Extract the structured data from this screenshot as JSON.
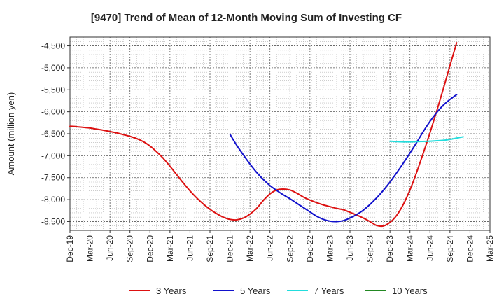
{
  "chart_data": {
    "type": "line",
    "title": "[9470]  Trend of Mean of 12-Month Moving Sum of Investing CF",
    "ylabel": "Amount (million yen)",
    "xlabel": "",
    "ylim": [
      -8700,
      -4300
    ],
    "yticks": [
      -4500,
      -5000,
      -5500,
      -6000,
      -6500,
      -7000,
      -7500,
      -8000,
      -8500
    ],
    "ytick_labels": [
      "-4,500",
      "-5,000",
      "-5,500",
      "-6,000",
      "-6,500",
      "-7,000",
      "-7,500",
      "-8,000",
      "-8,500"
    ],
    "x_range": [
      "2019-12",
      "2025-03"
    ],
    "xtick_labels": [
      "Dec-19",
      "Mar-20",
      "Jun-20",
      "Sep-20",
      "Dec-20",
      "Mar-21",
      "Jun-21",
      "Sep-21",
      "Dec-21",
      "Mar-22",
      "Jun-22",
      "Sep-22",
      "Dec-22",
      "Mar-23",
      "Jun-23",
      "Sep-23",
      "Dec-23",
      "Mar-24",
      "Jun-24",
      "Sep-24",
      "Dec-24",
      "Mar-25"
    ],
    "grid": true,
    "legend_position": "bottom",
    "series": [
      {
        "name": "3 Years",
        "color": "#dd1111",
        "points": [
          [
            "2019-12",
            -6330
          ],
          [
            "2020-01",
            -6340
          ],
          [
            "2020-02",
            -6355
          ],
          [
            "2020-03",
            -6370
          ],
          [
            "2020-04",
            -6395
          ],
          [
            "2020-05",
            -6420
          ],
          [
            "2020-06",
            -6450
          ],
          [
            "2020-07",
            -6480
          ],
          [
            "2020-08",
            -6520
          ],
          [
            "2020-09",
            -6560
          ],
          [
            "2020-10",
            -6610
          ],
          [
            "2020-11",
            -6680
          ],
          [
            "2020-12",
            -6780
          ],
          [
            "2021-01",
            -6910
          ],
          [
            "2021-02",
            -7060
          ],
          [
            "2021-03",
            -7240
          ],
          [
            "2021-04",
            -7430
          ],
          [
            "2021-05",
            -7620
          ],
          [
            "2021-06",
            -7800
          ],
          [
            "2021-07",
            -7960
          ],
          [
            "2021-08",
            -8100
          ],
          [
            "2021-09",
            -8220
          ],
          [
            "2021-10",
            -8320
          ],
          [
            "2021-11",
            -8400
          ],
          [
            "2021-12",
            -8450
          ],
          [
            "2022-01",
            -8460
          ],
          [
            "2022-02",
            -8420
          ],
          [
            "2022-03",
            -8330
          ],
          [
            "2022-04",
            -8200
          ],
          [
            "2022-05",
            -8020
          ],
          [
            "2022-06",
            -7870
          ],
          [
            "2022-07",
            -7780
          ],
          [
            "2022-08",
            -7760
          ],
          [
            "2022-09",
            -7780
          ],
          [
            "2022-10",
            -7850
          ],
          [
            "2022-11",
            -7940
          ],
          [
            "2022-12",
            -8010
          ],
          [
            "2023-01",
            -8070
          ],
          [
            "2023-02",
            -8120
          ],
          [
            "2023-03",
            -8160
          ],
          [
            "2023-04",
            -8200
          ],
          [
            "2023-05",
            -8230
          ],
          [
            "2023-06",
            -8290
          ],
          [
            "2023-07",
            -8350
          ],
          [
            "2023-08",
            -8420
          ],
          [
            "2023-09",
            -8500
          ],
          [
            "2023-10",
            -8590
          ],
          [
            "2023-11",
            -8600
          ],
          [
            "2023-12",
            -8520
          ],
          [
            "2024-01",
            -8360
          ],
          [
            "2024-02",
            -8110
          ],
          [
            "2024-03",
            -7780
          ],
          [
            "2024-04",
            -7380
          ],
          [
            "2024-05",
            -6940
          ],
          [
            "2024-06",
            -6480
          ],
          [
            "2024-07",
            -5990
          ],
          [
            "2024-08",
            -5480
          ],
          [
            "2024-09",
            -4950
          ],
          [
            "2024-10",
            -4430
          ]
        ]
      },
      {
        "name": "5 Years",
        "color": "#1111cc",
        "points": [
          [
            "2021-12",
            -6510
          ],
          [
            "2022-01",
            -6760
          ],
          [
            "2022-02",
            -6980
          ],
          [
            "2022-03",
            -7190
          ],
          [
            "2022-04",
            -7380
          ],
          [
            "2022-05",
            -7540
          ],
          [
            "2022-06",
            -7680
          ],
          [
            "2022-07",
            -7790
          ],
          [
            "2022-08",
            -7890
          ],
          [
            "2022-09",
            -7980
          ],
          [
            "2022-10",
            -8080
          ],
          [
            "2022-11",
            -8180
          ],
          [
            "2022-12",
            -8280
          ],
          [
            "2023-01",
            -8380
          ],
          [
            "2023-02",
            -8450
          ],
          [
            "2023-03",
            -8490
          ],
          [
            "2023-04",
            -8500
          ],
          [
            "2023-05",
            -8480
          ],
          [
            "2023-06",
            -8420
          ],
          [
            "2023-07",
            -8340
          ],
          [
            "2023-08",
            -8240
          ],
          [
            "2023-09",
            -8110
          ],
          [
            "2023-10",
            -7960
          ],
          [
            "2023-11",
            -7790
          ],
          [
            "2023-12",
            -7600
          ],
          [
            "2024-01",
            -7390
          ],
          [
            "2024-02",
            -7170
          ],
          [
            "2024-03",
            -6940
          ],
          [
            "2024-04",
            -6700
          ],
          [
            "2024-05",
            -6450
          ],
          [
            "2024-06",
            -6220
          ],
          [
            "2024-07",
            -6020
          ],
          [
            "2024-08",
            -5850
          ],
          [
            "2024-09",
            -5720
          ],
          [
            "2024-10",
            -5610
          ]
        ]
      },
      {
        "name": "7 Years",
        "color": "#22dddd",
        "points": [
          [
            "2023-12",
            -6670
          ],
          [
            "2024-01",
            -6680
          ],
          [
            "2024-02",
            -6685
          ],
          [
            "2024-03",
            -6685
          ],
          [
            "2024-04",
            -6680
          ],
          [
            "2024-05",
            -6675
          ],
          [
            "2024-06",
            -6670
          ],
          [
            "2024-07",
            -6660
          ],
          [
            "2024-08",
            -6650
          ],
          [
            "2024-09",
            -6630
          ],
          [
            "2024-10",
            -6600
          ],
          [
            "2024-11",
            -6570
          ]
        ]
      },
      {
        "name": "10 Years",
        "color": "#228822",
        "points": []
      }
    ]
  }
}
